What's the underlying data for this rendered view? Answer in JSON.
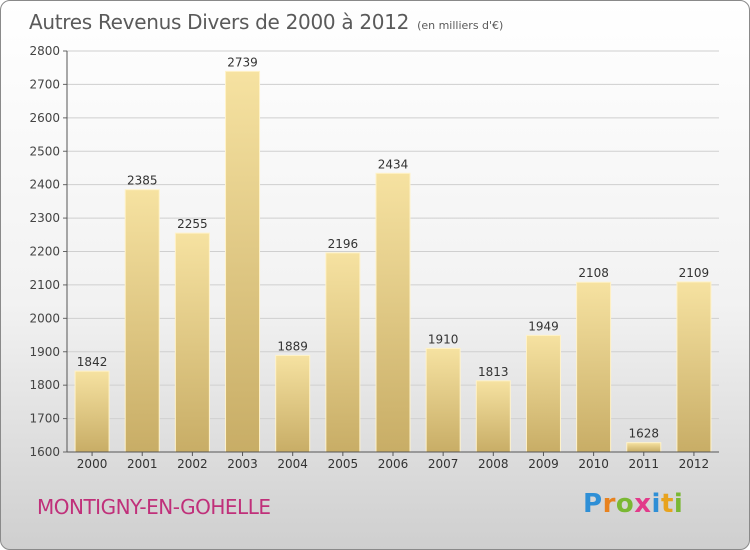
{
  "chart_data": {
    "type": "bar",
    "title": "Autres Revenus Divers de 2000 à 2012",
    "subtitle": "(en milliers d'€)",
    "categories": [
      "2000",
      "2001",
      "2002",
      "2003",
      "2004",
      "2005",
      "2006",
      "2007",
      "2008",
      "2009",
      "2010",
      "2011",
      "2012"
    ],
    "values": [
      1842,
      2385,
      2255,
      2739,
      1889,
      2196,
      2434,
      1910,
      1813,
      1949,
      2108,
      1628,
      2109
    ],
    "ylim": [
      1600,
      2800
    ],
    "yticks": [
      1600,
      1700,
      1800,
      1900,
      2000,
      2100,
      2200,
      2300,
      2400,
      2500,
      2600,
      2700,
      2800
    ],
    "grid": true,
    "bar_color": "#e6cd87",
    "xlabel": "",
    "ylabel": ""
  },
  "footer": {
    "location": "MONTIGNY-EN-GOHELLE",
    "location_color": "#c0307a",
    "brand": "Proxiti",
    "brand_letters": [
      {
        "ch": "P",
        "color": "#2e8fd6"
      },
      {
        "ch": "r",
        "color": "#e8821e"
      },
      {
        "ch": "o",
        "color": "#7ab833"
      },
      {
        "ch": "x",
        "color": "#e23a8a"
      },
      {
        "ch": "i",
        "color": "#2e8fd6"
      },
      {
        "ch": "t",
        "color": "#e8a31e"
      },
      {
        "ch": "i",
        "color": "#7ab833"
      }
    ]
  }
}
